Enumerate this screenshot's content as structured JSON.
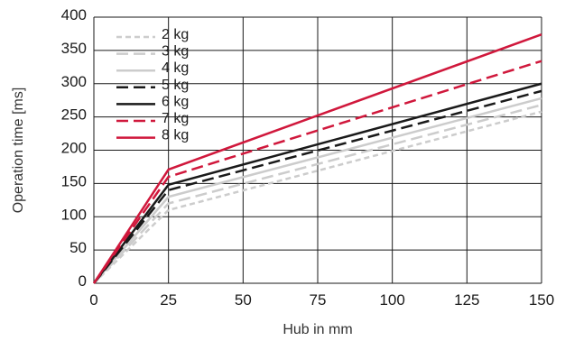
{
  "chart_data": {
    "type": "line",
    "title": "",
    "xlabel": "Hub in mm",
    "ylabel": "Operation time [ms]",
    "xlim": [
      0,
      150
    ],
    "ylim": [
      0,
      400
    ],
    "xticks": [
      "0",
      "25",
      "50",
      "75",
      "100",
      "125",
      "150"
    ],
    "yticks": [
      "0",
      "50",
      "100",
      "150",
      "200",
      "250",
      "300",
      "350",
      "400"
    ],
    "grid": true,
    "legend_position": "top-left",
    "x": [
      0,
      25,
      150
    ],
    "series": [
      {
        "name": "2 kg",
        "values": [
          0,
          110,
          258
        ],
        "color": "#cccccc",
        "dash": "short"
      },
      {
        "name": "3 kg",
        "values": [
          0,
          120,
          268
        ],
        "color": "#cccccc",
        "dash": "long"
      },
      {
        "name": "4 kg",
        "values": [
          0,
          130,
          278
        ],
        "color": "#cccccc",
        "dash": "solid"
      },
      {
        "name": "5 kg",
        "values": [
          0,
          140,
          289
        ],
        "color": "#1a1a1a",
        "dash": "long"
      },
      {
        "name": "6 kg",
        "values": [
          0,
          148,
          300
        ],
        "color": "#1a1a1a",
        "dash": "solid"
      },
      {
        "name": "7 kg",
        "values": [
          0,
          160,
          334
        ],
        "color": "#d0183c",
        "dash": "long"
      },
      {
        "name": "8 kg",
        "values": [
          0,
          171,
          374
        ],
        "color": "#d0183c",
        "dash": "solid"
      }
    ]
  }
}
